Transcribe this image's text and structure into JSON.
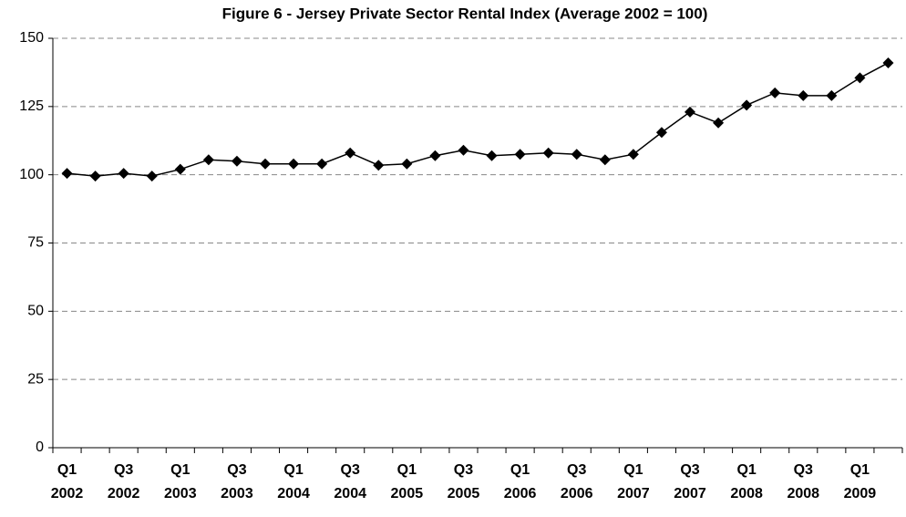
{
  "chart_data": {
    "type": "line",
    "title": "Figure 6 - Jersey Private Sector Rental Index (Average 2002 = 100)",
    "categories": [
      "Q1 2002",
      null,
      "Q3 2002",
      null,
      "Q1 2003",
      null,
      "Q3 2003",
      null,
      "Q1 2004",
      null,
      "Q3 2004",
      null,
      "Q1 2005",
      null,
      "Q3 2005",
      null,
      "Q1 2006",
      null,
      "Q3 2006",
      null,
      "Q1 2007",
      null,
      "Q3 2007",
      null,
      "Q1 2008",
      null,
      "Q3 2008",
      null,
      "Q1 2009",
      null
    ],
    "values": [
      100.5,
      99.5,
      100.5,
      99.5,
      102,
      105.5,
      105,
      104,
      104,
      104,
      108,
      103.5,
      104,
      107,
      109,
      107,
      107.5,
      108,
      107.5,
      105.5,
      107.5,
      115.5,
      123,
      119,
      125.5,
      130,
      129,
      129,
      135.5,
      141
    ],
    "color": "#000000",
    "ylim": [
      0,
      150
    ],
    "yticks": [
      0,
      25,
      50,
      75,
      100,
      125,
      150
    ],
    "grid": true
  }
}
